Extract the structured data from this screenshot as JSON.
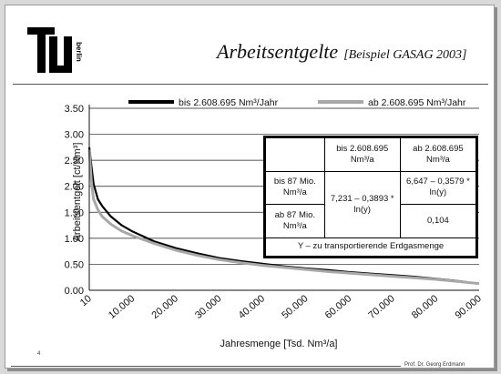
{
  "slide": {
    "title": "Arbeitsentgelte",
    "subtitle": "[Beispiel GASAG 2003]",
    "logo_text": "berlin",
    "page_number": "4",
    "footer_credit": "Prof. Dr. Georg Erdmann"
  },
  "chart_data": {
    "type": "line",
    "title": "",
    "xlabel": "Jahresmenge [Tsd. Nm³/a]",
    "ylabel": "Arbeitsentgelt [ct/Nm³]",
    "xlim": [
      10,
      90000
    ],
    "ylim": [
      0,
      3.5
    ],
    "xticks": [
      {
        "value": 10,
        "label": "10"
      },
      {
        "value": 10000,
        "label": "10.000"
      },
      {
        "value": 20000,
        "label": "20.000"
      },
      {
        "value": 30000,
        "label": "30.000"
      },
      {
        "value": 40000,
        "label": "40.000"
      },
      {
        "value": 50000,
        "label": "50.000"
      },
      {
        "value": 60000,
        "label": "60.000"
      },
      {
        "value": 70000,
        "label": "70.000"
      },
      {
        "value": 80000,
        "label": "80.000"
      },
      {
        "value": 90000,
        "label": "90.000"
      }
    ],
    "yticks": [
      {
        "value": 0,
        "label": "0.00"
      },
      {
        "value": 0.5,
        "label": "0.50"
      },
      {
        "value": 1,
        "label": "1.00"
      },
      {
        "value": 1.5,
        "label": "1.50"
      },
      {
        "value": 2,
        "label": "2.00"
      },
      {
        "value": 2.5,
        "label": "2.50"
      },
      {
        "value": 3,
        "label": "3.00"
      },
      {
        "value": 3.5,
        "label": "3.50"
      }
    ],
    "grid": "horizontal",
    "legend_position": "top",
    "series": [
      {
        "name": "bis 2.608.695 Nm³/Jahr",
        "color": "#000000",
        "x": [
          10,
          500,
          1000,
          2000,
          3000,
          5000,
          7500,
          10000,
          15000,
          20000,
          25000,
          30000,
          35000,
          40000,
          45000,
          50000,
          55000,
          60000,
          65000,
          70000,
          75000,
          80000,
          85000,
          87000
        ],
        "y": [
          2.75,
          2.4,
          2.05,
          1.75,
          1.62,
          1.42,
          1.25,
          1.13,
          0.94,
          0.81,
          0.71,
          0.62,
          0.56,
          0.51,
          0.46,
          0.42,
          0.39,
          0.35,
          0.32,
          0.29,
          0.26,
          0.22,
          0.18,
          0.16
        ]
      },
      {
        "name": "ab 2.608.695 Nm³/Jahr",
        "color": "#a8a8a8",
        "x": [
          10,
          500,
          1000,
          2000,
          3000,
          5000,
          7500,
          10000,
          15000,
          20000,
          25000,
          30000,
          35000,
          40000,
          45000,
          50000,
          55000,
          60000,
          65000,
          70000,
          75000,
          80000,
          85000,
          90000
        ],
        "y": [
          2.7,
          2.1,
          1.75,
          1.55,
          1.42,
          1.27,
          1.14,
          1.05,
          0.9,
          0.77,
          0.67,
          0.59,
          0.53,
          0.48,
          0.44,
          0.4,
          0.36,
          0.33,
          0.3,
          0.27,
          0.24,
          0.21,
          0.17,
          0.13
        ]
      }
    ]
  },
  "table": {
    "header_col1": "bis 2.608.695 Nm³/a",
    "header_col2": "ab 2.608.695 Nm³/a",
    "row1_label": "bis 87 Mio. Nm³/a",
    "row2_label": "ab 87 Mio. Nm³/a",
    "formula1": "7,231 – 0,3893 * ln(y)",
    "formula2": "6,647 – 0,3579 * ln(y)",
    "constant": "0,104",
    "footnote": "Y – zu transportierende Erdgasmenge"
  }
}
